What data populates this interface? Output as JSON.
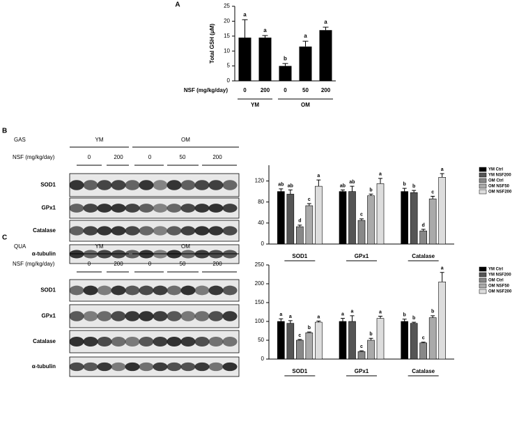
{
  "chart_data": [
    {
      "type": "bar",
      "panel": "A",
      "y_label": "Total GSH (μM)",
      "x_label": "NSF (mg/kg/day)",
      "categories": [
        "0",
        "200",
        "0",
        "50",
        "200"
      ],
      "groups": [
        "YM",
        "OM"
      ],
      "values": [
        14.5,
        14.5,
        5,
        11.5,
        17
      ],
      "errors": [
        6,
        0.7,
        0.8,
        1.8,
        1
      ],
      "letters": [
        "a",
        "a",
        "b",
        "a",
        "a"
      ],
      "color": "#000000",
      "ylim": [
        0,
        25
      ],
      "yticks": [
        0,
        5,
        10,
        15,
        20,
        25
      ]
    },
    {
      "type": "bar",
      "categories": [
        "SOD1",
        "GPx1",
        "Catalase"
      ],
      "series": [
        {
          "name": "YM Ctrl",
          "color": "#000000",
          "values": [
            100,
            100,
            100
          ],
          "errors": [
            5,
            3,
            6
          ],
          "letters": [
            "ab",
            "ab",
            "b"
          ]
        },
        {
          "name": "YM NSF200",
          "color": "#555555",
          "values": [
            95,
            100,
            98
          ],
          "errors": [
            8,
            10,
            4
          ],
          "letters": [
            "ab",
            "ab",
            "b"
          ]
        },
        {
          "name": "OM Ctrl",
          "color": "#888888",
          "values": [
            33,
            45,
            25
          ],
          "errors": [
            3,
            3,
            3
          ],
          "letters": [
            "d",
            "c",
            "d"
          ]
        },
        {
          "name": "OM NSF50",
          "color": "#aaaaaa",
          "values": [
            73,
            92,
            86
          ],
          "errors": [
            4,
            3,
            5
          ],
          "letters": [
            "c",
            "b",
            "c"
          ]
        },
        {
          "name": "OM NSF200",
          "color": "#dddddd",
          "values": [
            110,
            115,
            127
          ],
          "errors": [
            12,
            10,
            7
          ],
          "letters": [
            "a",
            "a",
            "a"
          ]
        }
      ],
      "ylim": [
        0,
        150
      ],
      "yticks": [
        0,
        40,
        80,
        120
      ]
    },
    {
      "type": "bar",
      "categories": [
        "SOD1",
        "GPx1",
        "Catalase"
      ],
      "series": [
        {
          "name": "YM Ctrl",
          "color": "#000000",
          "values": [
            100,
            100,
            100
          ],
          "errors": [
            7,
            8,
            6
          ],
          "letters": [
            "a",
            "a",
            "b"
          ]
        },
        {
          "name": "YM NSF200",
          "color": "#555555",
          "values": [
            95,
            100,
            95
          ],
          "errors": [
            7,
            15,
            3
          ],
          "letters": [
            "a",
            "a",
            "b"
          ]
        },
        {
          "name": "OM Ctrl",
          "color": "#888888",
          "values": [
            50,
            20,
            43
          ],
          "errors": [
            2,
            2,
            2
          ],
          "letters": [
            "c",
            "c",
            "c"
          ]
        },
        {
          "name": "OM NSF50",
          "color": "#aaaaaa",
          "values": [
            70,
            50,
            110
          ],
          "errors": [
            2,
            5,
            5
          ],
          "letters": [
            "b",
            "b",
            "b"
          ]
        },
        {
          "name": "OM NSF200",
          "color": "#dddddd",
          "values": [
            98,
            108,
            205
          ],
          "errors": [
            3,
            6,
            25
          ],
          "letters": [
            "a",
            "a",
            "a"
          ]
        }
      ],
      "ylim": [
        0,
        250
      ],
      "yticks": [
        0,
        50,
        100,
        150,
        200,
        250
      ]
    }
  ],
  "blots": [
    {
      "panel": "B",
      "tissue": "GAS",
      "groups": [
        "YM",
        "OM"
      ],
      "dose_label": "NSF (mg/kg/day)",
      "doses": [
        "0",
        "200",
        "0",
        "50",
        "200"
      ],
      "proteins": [
        "SOD1",
        "GPx1",
        "Catalase",
        "α-tubulin"
      ]
    },
    {
      "panel": "C",
      "tissue": "QUA",
      "groups": [
        "YM",
        "OM"
      ],
      "dose_label": "NSF (mg/kg/day)",
      "doses": [
        "0",
        "200",
        "0",
        "50",
        "200"
      ],
      "proteins": [
        "SOD1",
        "GPx1",
        "Catalase",
        "α-tubulin"
      ]
    }
  ]
}
